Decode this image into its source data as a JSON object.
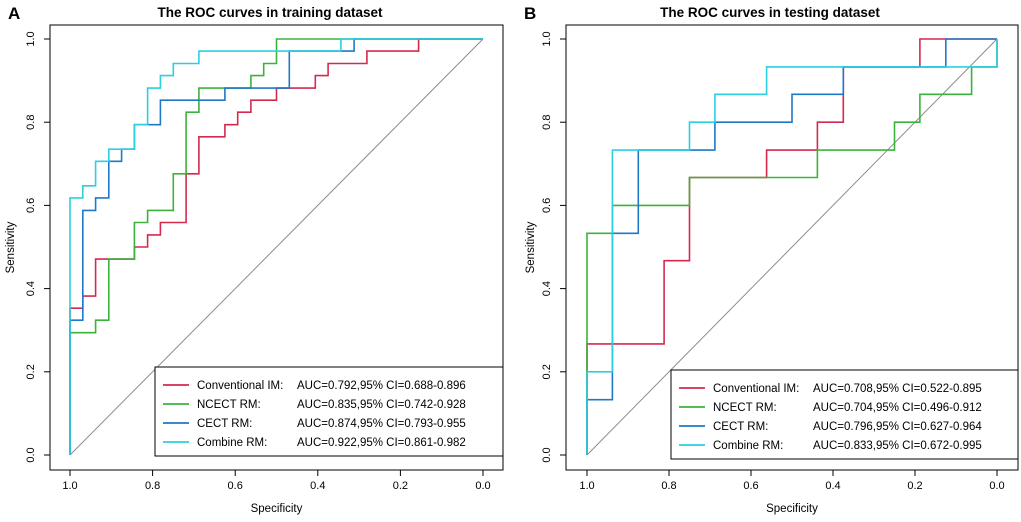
{
  "colors": {
    "conventional": "#d42a4e",
    "ncect": "#3bb33b",
    "cect": "#1f78c8",
    "combine": "#2ccfe0",
    "diagonal": "#8c8c8c"
  },
  "chart_data": [
    {
      "type": "line",
      "panel": "A",
      "title": "The ROC curves in training dataset",
      "xlabel": "Specificity",
      "ylabel": "Sensitivity",
      "xlim": [
        1.0,
        0.0
      ],
      "ylim": [
        0.0,
        1.0
      ],
      "x_ticks": [
        "1.0",
        "0.8",
        "0.6",
        "0.4",
        "0.2",
        "0.0"
      ],
      "y_ticks": [
        "0.0",
        "0.2",
        "0.4",
        "0.6",
        "0.8",
        "1.0"
      ],
      "legend_position": "bottom-right",
      "series": [
        {
          "key": "conventional",
          "name": "Conventional IM:",
          "auc": "AUC=0.792,95% CI=0.688-0.896",
          "points": [
            [
              1,
              0
            ],
            [
              1,
              0.353
            ],
            [
              0.969,
              0.353
            ],
            [
              0.969,
              0.382
            ],
            [
              0.938,
              0.382
            ],
            [
              0.938,
              0.471
            ],
            [
              0.844,
              0.471
            ],
            [
              0.844,
              0.5
            ],
            [
              0.812,
              0.5
            ],
            [
              0.812,
              0.529
            ],
            [
              0.781,
              0.529
            ],
            [
              0.781,
              0.559
            ],
            [
              0.719,
              0.559
            ],
            [
              0.719,
              0.588
            ],
            [
              0.719,
              0.676
            ],
            [
              0.688,
              0.676
            ],
            [
              0.688,
              0.765
            ],
            [
              0.625,
              0.765
            ],
            [
              0.625,
              0.794
            ],
            [
              0.594,
              0.794
            ],
            [
              0.594,
              0.824
            ],
            [
              0.562,
              0.824
            ],
            [
              0.562,
              0.853
            ],
            [
              0.5,
              0.853
            ],
            [
              0.5,
              0.882
            ],
            [
              0.406,
              0.882
            ],
            [
              0.406,
              0.912
            ],
            [
              0.375,
              0.912
            ],
            [
              0.375,
              0.941
            ],
            [
              0.281,
              0.941
            ],
            [
              0.281,
              0.971
            ],
            [
              0.156,
              0.971
            ],
            [
              0.156,
              1.0
            ],
            [
              0,
              1.0
            ]
          ]
        },
        {
          "key": "ncect",
          "name": "NCECT RM:",
          "auc": "AUC=0.835,95% CI=0.742-0.928",
          "points": [
            [
              1,
              0
            ],
            [
              1,
              0.294
            ],
            [
              0.938,
              0.294
            ],
            [
              0.938,
              0.324
            ],
            [
              0.906,
              0.324
            ],
            [
              0.906,
              0.471
            ],
            [
              0.844,
              0.471
            ],
            [
              0.844,
              0.559
            ],
            [
              0.812,
              0.559
            ],
            [
              0.812,
              0.588
            ],
            [
              0.75,
              0.588
            ],
            [
              0.75,
              0.676
            ],
            [
              0.719,
              0.676
            ],
            [
              0.719,
              0.824
            ],
            [
              0.688,
              0.824
            ],
            [
              0.688,
              0.882
            ],
            [
              0.562,
              0.882
            ],
            [
              0.562,
              0.912
            ],
            [
              0.531,
              0.912
            ],
            [
              0.531,
              0.941
            ],
            [
              0.5,
              0.941
            ],
            [
              0.5,
              1.0
            ],
            [
              0,
              1.0
            ]
          ]
        },
        {
          "key": "cect",
          "name": "CECT RM:",
          "auc": "AUC=0.874,95% CI=0.793-0.955",
          "points": [
            [
              1,
              0
            ],
            [
              1,
              0.324
            ],
            [
              0.969,
              0.324
            ],
            [
              0.969,
              0.588
            ],
            [
              0.938,
              0.588
            ],
            [
              0.938,
              0.618
            ],
            [
              0.906,
              0.618
            ],
            [
              0.906,
              0.706
            ],
            [
              0.875,
              0.706
            ],
            [
              0.875,
              0.735
            ],
            [
              0.844,
              0.735
            ],
            [
              0.844,
              0.794
            ],
            [
              0.781,
              0.794
            ],
            [
              0.781,
              0.853
            ],
            [
              0.625,
              0.853
            ],
            [
              0.625,
              0.882
            ],
            [
              0.469,
              0.882
            ],
            [
              0.469,
              0.971
            ],
            [
              0.312,
              0.971
            ],
            [
              0.312,
              1.0
            ],
            [
              0,
              1.0
            ]
          ]
        },
        {
          "key": "combine",
          "name": "Combine RM:",
          "auc": "AUC=0.922,95% CI=0.861-0.982",
          "points": [
            [
              1,
              0
            ],
            [
              1,
              0.618
            ],
            [
              0.969,
              0.618
            ],
            [
              0.969,
              0.647
            ],
            [
              0.938,
              0.647
            ],
            [
              0.938,
              0.706
            ],
            [
              0.906,
              0.706
            ],
            [
              0.906,
              0.735
            ],
            [
              0.844,
              0.735
            ],
            [
              0.844,
              0.794
            ],
            [
              0.812,
              0.794
            ],
            [
              0.812,
              0.882
            ],
            [
              0.781,
              0.882
            ],
            [
              0.781,
              0.912
            ],
            [
              0.75,
              0.912
            ],
            [
              0.75,
              0.941
            ],
            [
              0.688,
              0.941
            ],
            [
              0.688,
              0.971
            ],
            [
              0.344,
              0.971
            ],
            [
              0.344,
              1.0
            ],
            [
              0,
              1.0
            ]
          ]
        }
      ]
    },
    {
      "type": "line",
      "panel": "B",
      "title": "The ROC curves in testing dataset",
      "xlabel": "Specificity",
      "ylabel": "Sensitivity",
      "xlim": [
        1.0,
        0.0
      ],
      "ylim": [
        0.0,
        1.0
      ],
      "x_ticks": [
        "1.0",
        "0.8",
        "0.6",
        "0.4",
        "0.2",
        "0.0"
      ],
      "y_ticks": [
        "0.0",
        "0.2",
        "0.4",
        "0.6",
        "0.8",
        "1.0"
      ],
      "legend_position": "bottom-right",
      "series": [
        {
          "key": "conventional",
          "name": "Conventional IM:",
          "auc": "AUC=0.708,95% CI=0.522-0.895",
          "points": [
            [
              1,
              0
            ],
            [
              1,
              0.267
            ],
            [
              0.812,
              0.267
            ],
            [
              0.812,
              0.467
            ],
            [
              0.75,
              0.467
            ],
            [
              0.75,
              0.667
            ],
            [
              0.562,
              0.667
            ],
            [
              0.562,
              0.733
            ],
            [
              0.438,
              0.733
            ],
            [
              0.438,
              0.8
            ],
            [
              0.375,
              0.8
            ],
            [
              0.375,
              0.933
            ],
            [
              0.188,
              0.933
            ],
            [
              0.188,
              1.0
            ],
            [
              0,
              1.0
            ]
          ]
        },
        {
          "key": "ncect",
          "name": "NCECT RM:",
          "auc": "AUC=0.704,95% CI=0.496-0.912",
          "points": [
            [
              1,
              0
            ],
            [
              1,
              0.533
            ],
            [
              0.938,
              0.533
            ],
            [
              0.938,
              0.6
            ],
            [
              0.75,
              0.6
            ],
            [
              0.75,
              0.667
            ],
            [
              0.438,
              0.667
            ],
            [
              0.438,
              0.733
            ],
            [
              0.25,
              0.733
            ],
            [
              0.25,
              0.8
            ],
            [
              0.188,
              0.8
            ],
            [
              0.188,
              0.867
            ],
            [
              0.062,
              0.867
            ],
            [
              0.062,
              0.933
            ],
            [
              0,
              0.933
            ],
            [
              0,
              1.0
            ]
          ]
        },
        {
          "key": "cect",
          "name": "CECT RM:",
          "auc": "AUC=0.796,95% CI=0.627-0.964",
          "points": [
            [
              1,
              0
            ],
            [
              1,
              0.133
            ],
            [
              0.938,
              0.133
            ],
            [
              0.938,
              0.533
            ],
            [
              0.875,
              0.533
            ],
            [
              0.875,
              0.733
            ],
            [
              0.688,
              0.733
            ],
            [
              0.688,
              0.8
            ],
            [
              0.5,
              0.8
            ],
            [
              0.5,
              0.867
            ],
            [
              0.375,
              0.867
            ],
            [
              0.375,
              0.933
            ],
            [
              0.125,
              0.933
            ],
            [
              0.125,
              1.0
            ],
            [
              0,
              1.0
            ]
          ]
        },
        {
          "key": "combine",
          "name": "Combine RM:",
          "auc": "AUC=0.833,95% CI=0.672-0.995",
          "points": [
            [
              1,
              0
            ],
            [
              1,
              0.2
            ],
            [
              0.938,
              0.2
            ],
            [
              0.938,
              0.733
            ],
            [
              0.75,
              0.733
            ],
            [
              0.75,
              0.8
            ],
            [
              0.688,
              0.8
            ],
            [
              0.688,
              0.867
            ],
            [
              0.562,
              0.867
            ],
            [
              0.562,
              0.933
            ],
            [
              0,
              0.933
            ],
            [
              0,
              1.0
            ]
          ]
        }
      ]
    }
  ]
}
